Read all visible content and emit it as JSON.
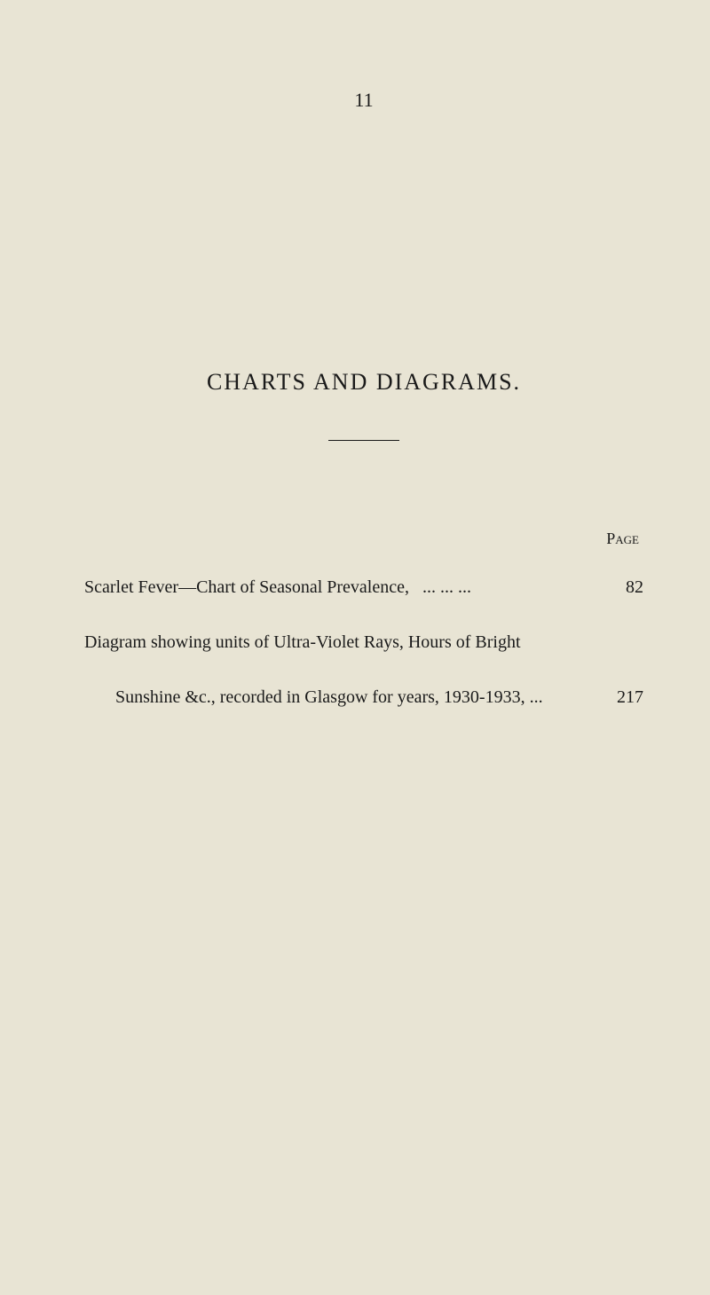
{
  "page": {
    "number": "11",
    "background_color": "#e8e4d4",
    "text_color": "#1a1a1a"
  },
  "section": {
    "title": "CHARTS AND DIAGRAMS."
  },
  "column_header": "Page",
  "entries": [
    {
      "text": "Scarlet Fever—Chart of Seasonal Prevalence,",
      "leader": "...      ...      ...",
      "page_num": "82"
    },
    {
      "continuation_line": "Diagram showing units of Ultra-Violet Rays, Hours of Bright",
      "text": "Sunshine &c., recorded in Glasgow for years, 1930-1933, ...",
      "page_num": "217"
    }
  ]
}
